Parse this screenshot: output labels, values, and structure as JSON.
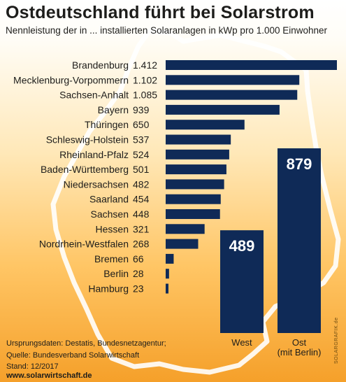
{
  "header": {
    "title": "Ostdeutschland führt bei Solarstrom",
    "subtitle": "Nennleistung der in ... installierten Solaranlagen in kWp pro 1.000 Einwohner"
  },
  "chart_data": [
    {
      "type": "bar",
      "orientation": "horizontal",
      "categories": [
        "Brandenburg",
        "Mecklenburg-Vorpommern",
        "Sachsen-Anhalt",
        "Bayern",
        "Thüringen",
        "Schleswig-Holstein",
        "Rheinland-Pfalz",
        "Baden-Württemberg",
        "Niedersachsen",
        "Saarland",
        "Sachsen",
        "Hessen",
        "Nordrhein-Westfalen",
        "Bremen",
        "Berlin",
        "Hamburg"
      ],
      "values": [
        1412,
        1102,
        1085,
        939,
        650,
        537,
        524,
        501,
        482,
        454,
        448,
        321,
        268,
        66,
        28,
        23
      ],
      "value_labels": [
        "1.412",
        "1.102",
        "1.085",
        "939",
        "650",
        "537",
        "524",
        "501",
        "482",
        "454",
        "448",
        "321",
        "268",
        "66",
        "28",
        "23"
      ],
      "title": "",
      "xlabel": "",
      "ylabel": "",
      "xlim": [
        0,
        1412
      ],
      "grid": false,
      "legend": "none",
      "colors": {
        "bar": "#0f2a57"
      }
    },
    {
      "type": "bar",
      "orientation": "vertical",
      "categories": [
        "West",
        "Ost\n(mit Berlin)"
      ],
      "values": [
        489,
        879
      ],
      "value_labels": [
        "489",
        "879"
      ],
      "title": "",
      "xlabel": "",
      "ylabel": "",
      "ylim": [
        0,
        879
      ],
      "grid": false,
      "legend": "none",
      "colors": {
        "bar": "#0f2a57",
        "value_text": "#ffffff"
      }
    }
  ],
  "footer": {
    "sources": [
      "Ursprungsdaten: Destatis, Bundesnetzagentur;",
      "Quelle: Bundesverband Solarwirtschaft",
      "Stand: 12/2017"
    ],
    "website": "www.solarwirtschaft.de",
    "credit": "SOLARGRAFIK.de"
  }
}
